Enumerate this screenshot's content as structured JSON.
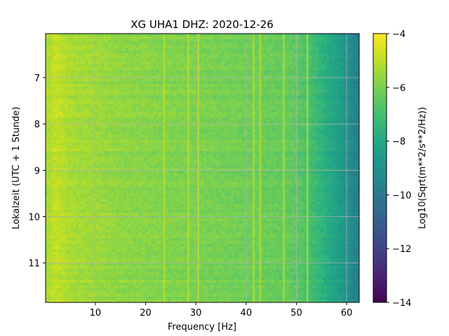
{
  "chart_data": {
    "type": "heatmap",
    "title": "XG UHA1  DHZ: 2020-12-26",
    "xlabel": "Frequency [Hz]",
    "ylabel": "Lokalzeit (UTC + 1 Stunde)",
    "xlim": [
      0.1,
      62.5
    ],
    "ylim": [
      11.85,
      6.05
    ],
    "xticks": [
      10,
      20,
      30,
      40,
      50,
      60
    ],
    "yticks": [
      7,
      8,
      9,
      10,
      11
    ],
    "grid": true,
    "colormap": "viridis",
    "colorbar": {
      "label": "Log10(Sqrt(m**2/s**2/Hz))",
      "range": [
        -14,
        -4
      ],
      "ticks": [
        -4,
        -6,
        -8,
        -10,
        -12,
        -14
      ]
    },
    "level_profile": {
      "frequency_hz": [
        0.5,
        2,
        5,
        10,
        15,
        20,
        25,
        30,
        35,
        40,
        45,
        50,
        52,
        54,
        56,
        58,
        60,
        62.5
      ],
      "log10_amplitude": [
        -5.3,
        -4.9,
        -5.3,
        -5.5,
        -5.7,
        -5.8,
        -5.9,
        -6.0,
        -6.1,
        -6.2,
        -6.3,
        -6.5,
        -6.9,
        -7.3,
        -7.8,
        -8.3,
        -8.9,
        -9.8
      ]
    },
    "narrowband_lines_hz": [
      23.7,
      28.5,
      30.5,
      41.5,
      42.8,
      47.5,
      52.2
    ]
  }
}
